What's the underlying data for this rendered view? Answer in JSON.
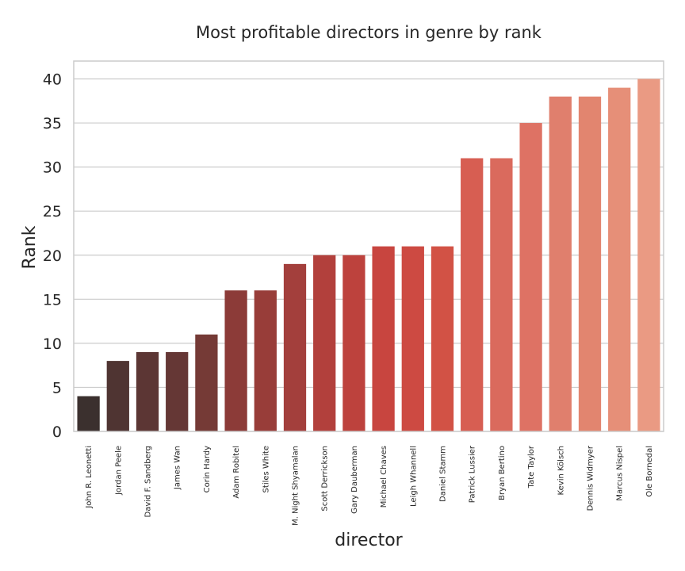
{
  "chart_data": {
    "type": "bar",
    "title": "Most profitable directors in genre by rank",
    "xlabel": "director",
    "ylabel": "Rank",
    "ylim": [
      0,
      42
    ],
    "yticks": [
      0,
      5,
      10,
      15,
      20,
      25,
      30,
      35,
      40
    ],
    "grid": true,
    "categories": [
      "John R. Leonetti",
      "Jordan Peele",
      "David F. Sandberg",
      "James Wan",
      "Corin Hardy",
      "Adam Robitel",
      "Stiles White",
      "M. Night Shyamalan",
      "Scott Derrickson",
      "Gary Dauberman",
      "Michael Chaves",
      "Leigh Whannell",
      "Daniel Stamm",
      "Patrick Lussier",
      "Bryan Bertino",
      "Tate Taylor",
      "Kevin Kölsch",
      "Dennis Widmyer",
      "Marcus Nispel",
      "Ole Bornedal"
    ],
    "values": [
      4,
      8,
      9,
      9,
      11,
      16,
      16,
      19,
      20,
      20,
      21,
      21,
      21,
      31,
      31,
      35,
      38,
      38,
      39,
      40
    ],
    "colors": [
      "#3b302e",
      "#4f3432",
      "#5c3634",
      "#653735",
      "#753a36",
      "#8c3b38",
      "#983d39",
      "#a33f3c",
      "#b2403c",
      "#bd423d",
      "#c8453f",
      "#cd4a42",
      "#d25245",
      "#d75e52",
      "#da6a5d",
      "#de7264",
      "#e07f6d",
      "#e2856f",
      "#e68f78",
      "#ea9a83"
    ]
  }
}
